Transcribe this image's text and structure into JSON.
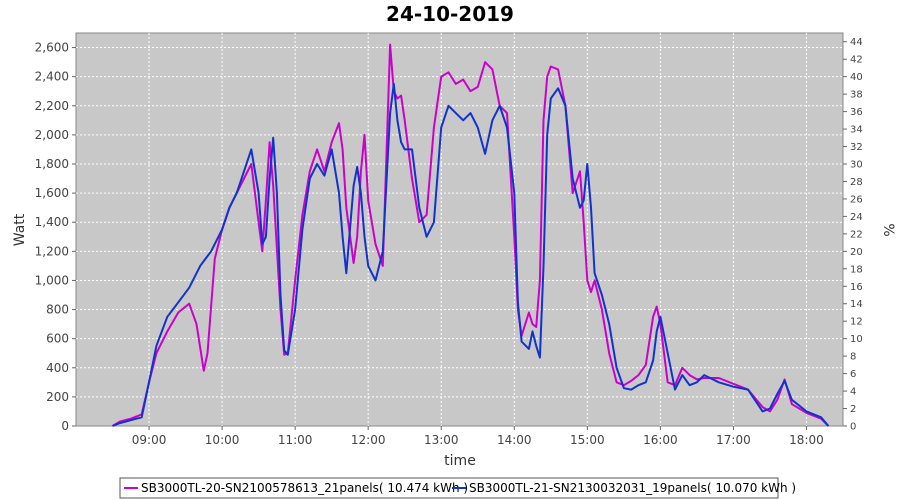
{
  "chart_data": {
    "type": "line",
    "title": "24-10-2019",
    "xlabel": "time",
    "ylabel": "Watt",
    "y2label": "%",
    "xlim": [
      8.0,
      18.5
    ],
    "ylim": [
      0,
      2700
    ],
    "y2lim": [
      0,
      45
    ],
    "x_ticks": [
      9,
      10,
      11,
      12,
      13,
      14,
      15,
      16,
      17,
      18
    ],
    "x_tick_labels": [
      "09:00",
      "10:00",
      "11:00",
      "12:00",
      "13:00",
      "14:00",
      "15:00",
      "16:00",
      "17:00",
      "18:00"
    ],
    "y_ticks": [
      0,
      200,
      400,
      600,
      800,
      1000,
      1200,
      1400,
      1600,
      1800,
      2000,
      2200,
      2400,
      2600
    ],
    "y_tick_labels": [
      "0",
      "200",
      "400",
      "600",
      "800",
      "1,000",
      "1,200",
      "1,400",
      "1,600",
      "1,800",
      "2,000",
      "2,200",
      "2,400",
      "2,600"
    ],
    "y2_ticks": [
      0,
      2,
      4,
      6,
      8,
      10,
      12,
      14,
      16,
      18,
      20,
      22,
      24,
      26,
      28,
      30,
      32,
      34,
      36,
      38,
      40,
      42,
      44
    ],
    "grid": true,
    "legend_position": "bottom",
    "series": [
      {
        "name": "SB3000TL-20-SN2100578613_21panels( 10.474 kWh )",
        "color": "#cc00cc",
        "x": [
          8.5,
          8.6,
          8.75,
          8.9,
          9.0,
          9.1,
          9.25,
          9.4,
          9.55,
          9.65,
          9.75,
          9.8,
          9.9,
          10.0,
          10.1,
          10.2,
          10.3,
          10.4,
          10.5,
          10.55,
          10.6,
          10.65,
          10.7,
          10.8,
          10.85,
          10.9,
          11.0,
          11.1,
          11.2,
          11.3,
          11.4,
          11.5,
          11.6,
          11.65,
          11.7,
          11.8,
          11.85,
          11.9,
          11.95,
          12.0,
          12.1,
          12.2,
          12.3,
          12.35,
          12.4,
          12.45,
          12.5,
          12.6,
          12.7,
          12.8,
          12.9,
          13.0,
          13.1,
          13.2,
          13.3,
          13.4,
          13.5,
          13.6,
          13.7,
          13.8,
          13.9,
          14.0,
          14.05,
          14.1,
          14.2,
          14.25,
          14.3,
          14.35,
          14.4,
          14.45,
          14.5,
          14.6,
          14.7,
          14.8,
          14.9,
          14.95,
          15.0,
          15.05,
          15.1,
          15.2,
          15.3,
          15.4,
          15.5,
          15.6,
          15.7,
          15.8,
          15.9,
          15.95,
          16.0,
          16.1,
          16.2,
          16.3,
          16.4,
          16.5,
          16.6,
          16.8,
          17.0,
          17.2,
          17.4,
          17.5,
          17.6,
          17.7,
          17.8,
          18.0,
          18.2,
          18.3
        ],
        "y": [
          0,
          30,
          50,
          80,
          300,
          500,
          650,
          780,
          840,
          700,
          380,
          500,
          1150,
          1350,
          1500,
          1600,
          1700,
          1800,
          1400,
          1200,
          1550,
          1950,
          1650,
          800,
          490,
          500,
          1000,
          1450,
          1750,
          1900,
          1750,
          1950,
          2080,
          1900,
          1500,
          1120,
          1300,
          1750,
          2000,
          1550,
          1250,
          1100,
          2620,
          2300,
          2250,
          2270,
          2100,
          1700,
          1400,
          1450,
          2050,
          2400,
          2430,
          2350,
          2380,
          2300,
          2330,
          2500,
          2450,
          2200,
          2150,
          1300,
          800,
          620,
          780,
          700,
          680,
          1000,
          2100,
          2400,
          2470,
          2450,
          2200,
          1600,
          1750,
          1400,
          1000,
          920,
          1000,
          800,
          500,
          300,
          280,
          310,
          350,
          420,
          750,
          820,
          700,
          300,
          280,
          400,
          350,
          320,
          330,
          330,
          290,
          250,
          130,
          100,
          180,
          320,
          150,
          90,
          50,
          0
        ]
      },
      {
        "name": "SB3000TL-21-SN2130032031_19panels( 10.070 kWh )",
        "color": "#1133cc",
        "x": [
          8.5,
          8.6,
          8.75,
          8.9,
          9.0,
          9.1,
          9.25,
          9.4,
          9.55,
          9.7,
          9.85,
          10.0,
          10.1,
          10.2,
          10.3,
          10.4,
          10.5,
          10.55,
          10.6,
          10.65,
          10.7,
          10.75,
          10.8,
          10.85,
          10.9,
          11.0,
          11.1,
          11.2,
          11.3,
          11.4,
          11.5,
          11.6,
          11.65,
          11.7,
          11.8,
          11.85,
          11.9,
          11.95,
          12.0,
          12.1,
          12.2,
          12.3,
          12.35,
          12.4,
          12.45,
          12.5,
          12.6,
          12.7,
          12.8,
          12.9,
          13.0,
          13.1,
          13.2,
          13.3,
          13.4,
          13.5,
          13.6,
          13.7,
          13.8,
          13.9,
          14.0,
          14.05,
          14.1,
          14.2,
          14.25,
          14.3,
          14.35,
          14.4,
          14.45,
          14.5,
          14.6,
          14.7,
          14.8,
          14.9,
          14.95,
          15.0,
          15.05,
          15.1,
          15.2,
          15.3,
          15.4,
          15.5,
          15.6,
          15.7,
          15.8,
          15.9,
          15.95,
          16.0,
          16.1,
          16.2,
          16.3,
          16.4,
          16.5,
          16.6,
          16.8,
          17.0,
          17.2,
          17.4,
          17.5,
          17.6,
          17.7,
          17.8,
          18.0,
          18.2,
          18.3
        ],
        "y": [
          0,
          20,
          40,
          60,
          300,
          550,
          750,
          850,
          950,
          1100,
          1200,
          1350,
          1500,
          1600,
          1750,
          1900,
          1600,
          1250,
          1300,
          1700,
          1980,
          1600,
          900,
          520,
          490,
          800,
          1350,
          1700,
          1800,
          1720,
          1900,
          1600,
          1300,
          1050,
          1650,
          1780,
          1600,
          1300,
          1100,
          1000,
          1200,
          2150,
          2350,
          2100,
          1950,
          1900,
          1900,
          1500,
          1300,
          1400,
          2050,
          2200,
          2150,
          2100,
          2150,
          2050,
          1870,
          2100,
          2200,
          2050,
          1600,
          850,
          580,
          530,
          650,
          550,
          470,
          1100,
          2000,
          2250,
          2320,
          2200,
          1700,
          1500,
          1550,
          1800,
          1500,
          1050,
          900,
          700,
          400,
          260,
          250,
          280,
          300,
          450,
          650,
          750,
          500,
          250,
          350,
          280,
          300,
          350,
          300,
          270,
          250,
          100,
          120,
          220,
          310,
          180,
          100,
          60,
          0
        ]
      }
    ]
  }
}
